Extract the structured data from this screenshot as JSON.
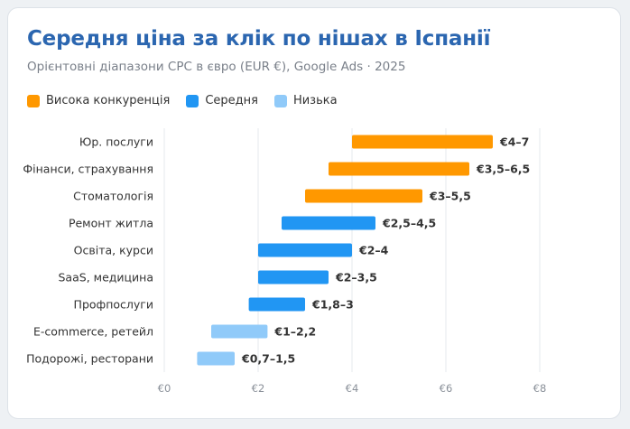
{
  "title": "Середня ціна за клік по нішах в Іспанії",
  "subtitle": "Орієнтовні діапазони CPC в євро (EUR €), Google Ads · 2025",
  "legend": [
    {
      "label": "Висока конкуренція",
      "color": "#ff9800"
    },
    {
      "label": "Середня",
      "color": "#2196f3"
    },
    {
      "label": "Низька",
      "color": "#90caf9"
    }
  ],
  "chart_data": {
    "type": "bar",
    "orientation": "horizontal-range",
    "title": "Середня ціна за клік по нішах в Іспанії",
    "subtitle": "Орієнтовні діапазони CPC в євро (EUR €), Google Ads · 2025",
    "xlim": [
      0,
      8
    ],
    "x_ticks": [
      0,
      2,
      4,
      6,
      8
    ],
    "x_tick_labels": [
      "€0",
      "€2",
      "€4",
      "€6",
      "€8"
    ],
    "grid": true,
    "legend_position": "top-left",
    "categories": [
      "Юр. послуги",
      "Фінанси, страхування",
      "Стоматологія",
      "Ремонт житла",
      "Освіта, курси",
      "SaaS, медицина",
      "Профпослуги",
      "E-commerce, ретейл",
      "Подорожі, ресторани"
    ],
    "ranges": [
      {
        "min": 4,
        "max": 7,
        "level": "Висока конкуренція",
        "label": "€4–7"
      },
      {
        "min": 3.5,
        "max": 6.5,
        "level": "Висока конкуренція",
        "label": "€3,5–6,5"
      },
      {
        "min": 3,
        "max": 5.5,
        "level": "Висока конкуренція",
        "label": "€3–5,5"
      },
      {
        "min": 2.5,
        "max": 4.5,
        "level": "Середня",
        "label": "€2,5–4,5"
      },
      {
        "min": 2,
        "max": 4,
        "level": "Середня",
        "label": "€2–4"
      },
      {
        "min": 2,
        "max": 3.5,
        "level": "Середня",
        "label": "€2–3,5"
      },
      {
        "min": 1.8,
        "max": 3,
        "level": "Середня",
        "label": "€1,8–3"
      },
      {
        "min": 1,
        "max": 2.2,
        "level": "Низька",
        "label": "€1–2,2"
      },
      {
        "min": 0.7,
        "max": 1.5,
        "level": "Низька",
        "label": "€0,7–1,5"
      }
    ]
  }
}
